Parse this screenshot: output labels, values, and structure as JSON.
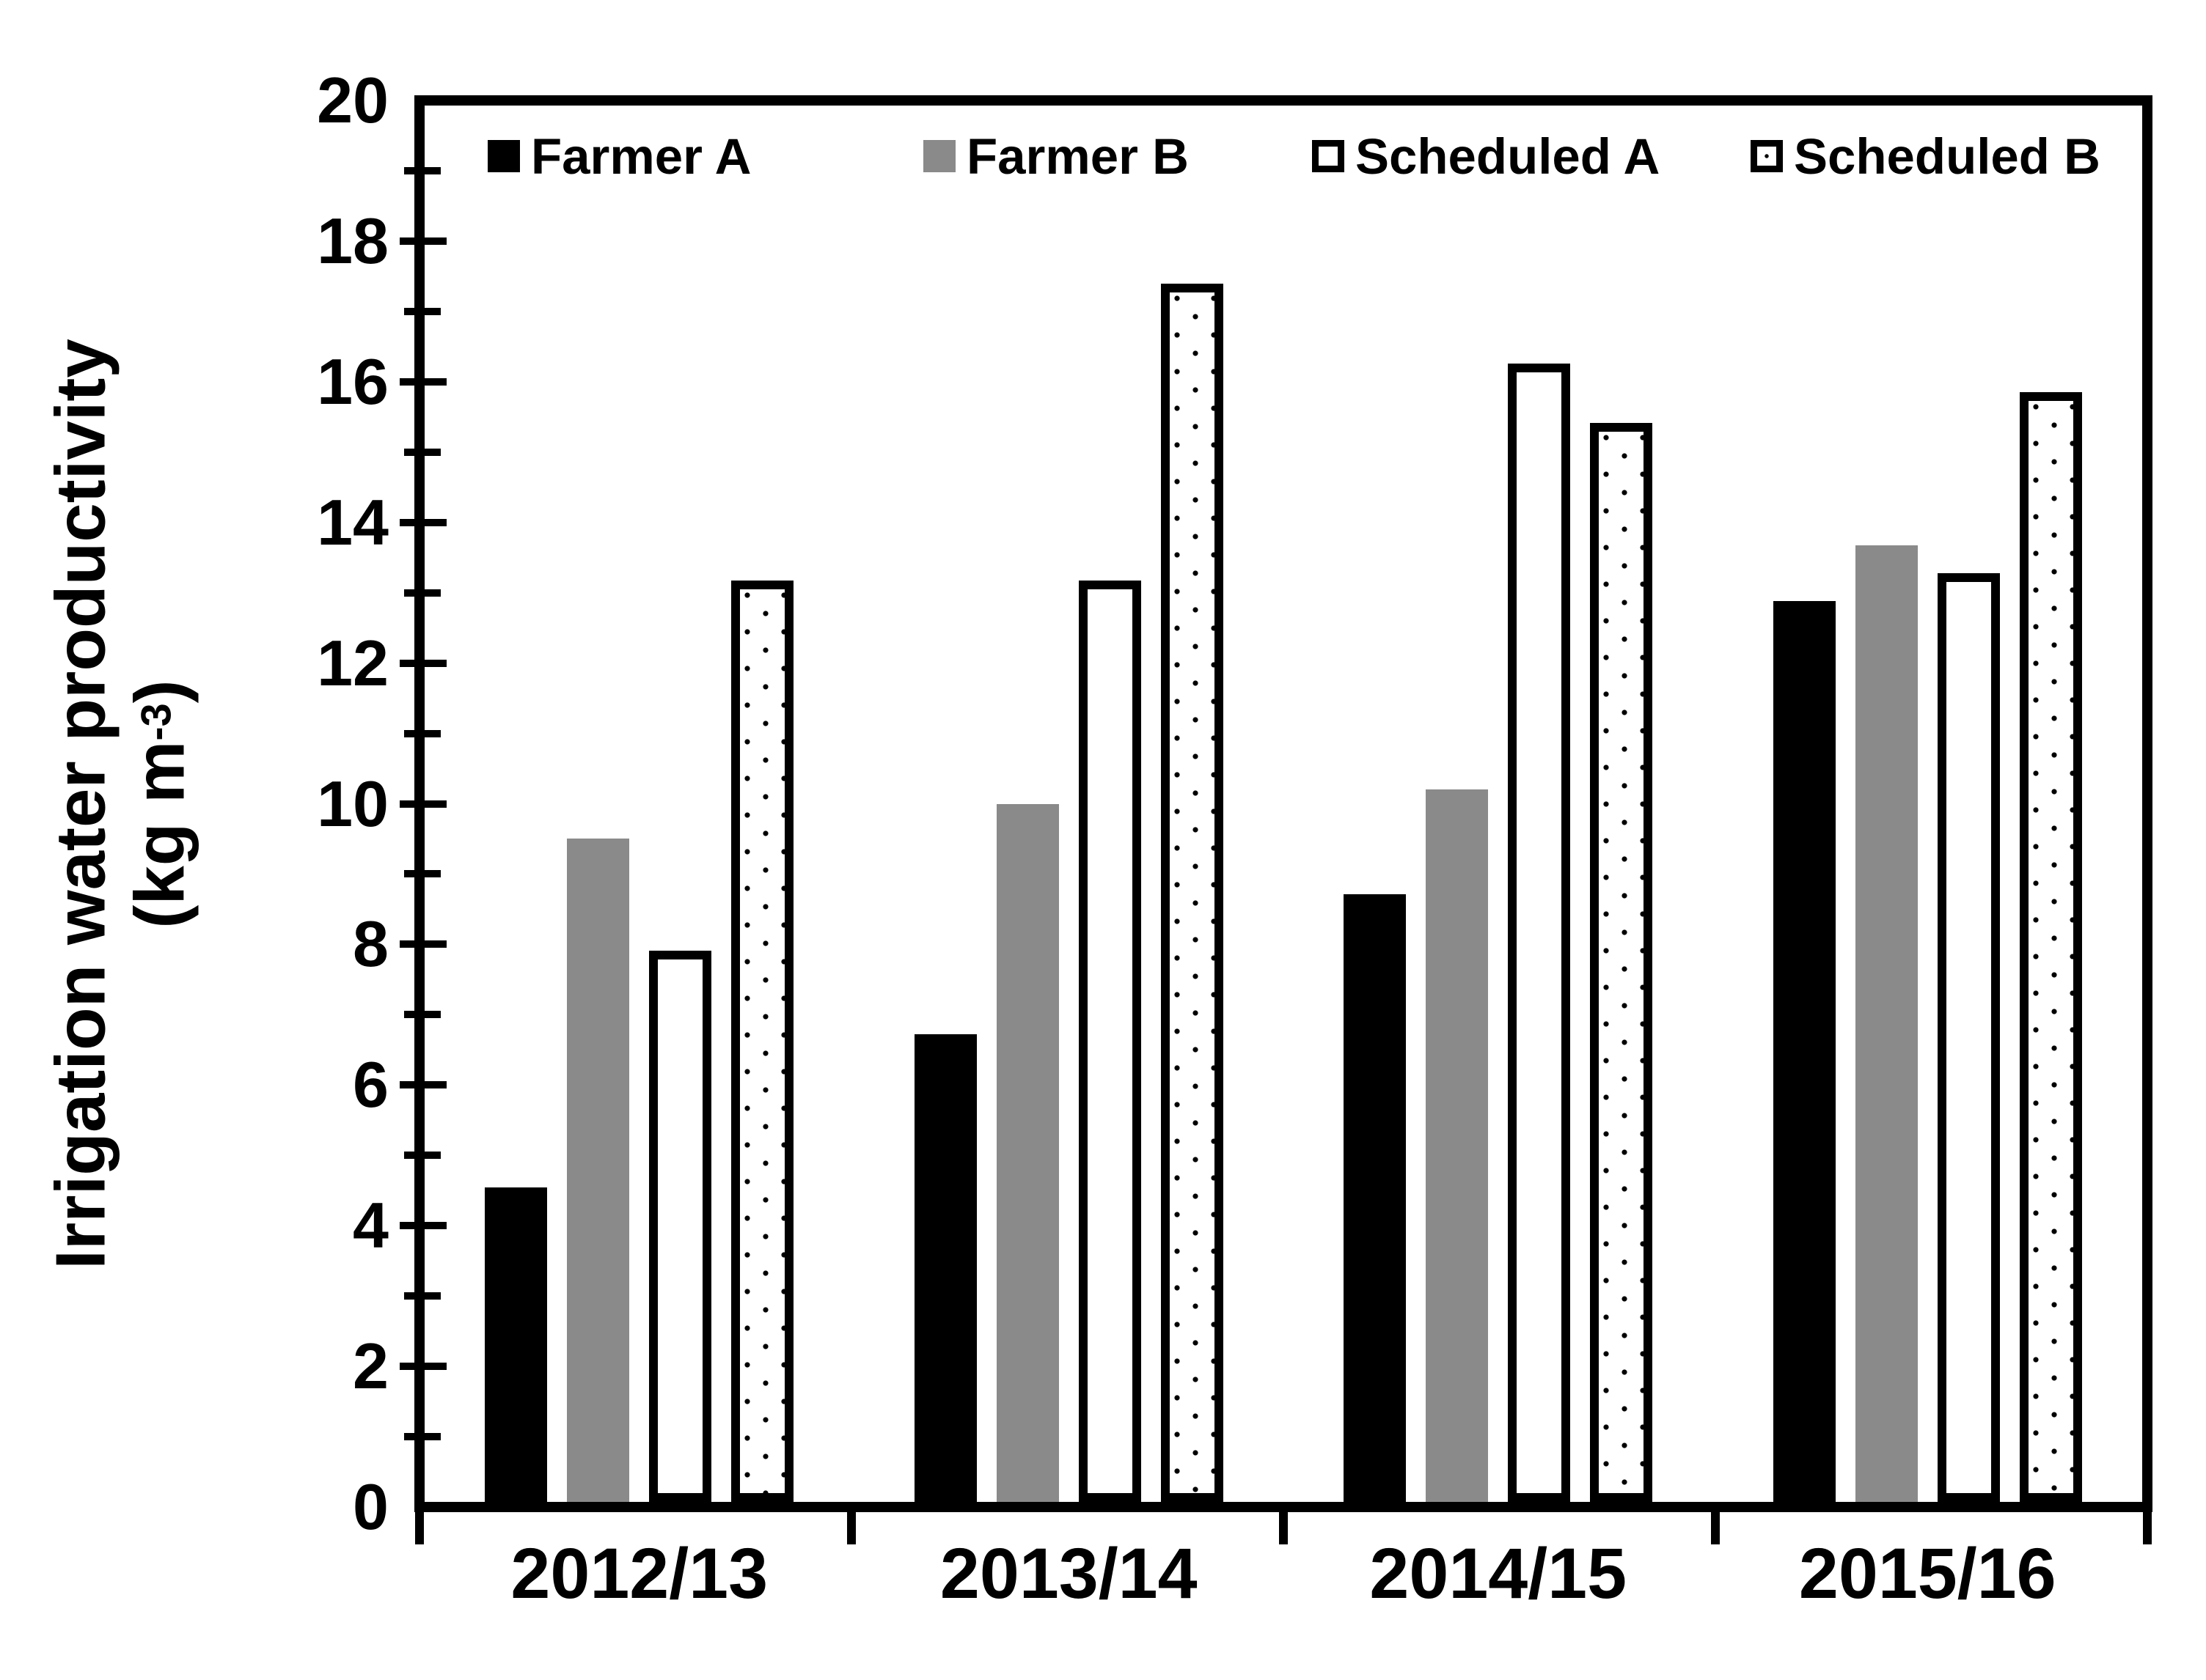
{
  "figure": {
    "background": "#ffffff",
    "axis_color": "#000000"
  },
  "chart_data": {
    "type": "bar",
    "title": "",
    "xlabel": "",
    "ylabel_line1": "Irrigation water productivity",
    "ylabel_unit_pre": "(kg m",
    "ylabel_unit_sup": "-3",
    "ylabel_unit_post": ")",
    "categories": [
      "2012/13",
      "2013/14",
      "2014/15",
      "2015/16"
    ],
    "series": [
      {
        "name": "Farmer A",
        "style": "solid-black",
        "color": "#000000",
        "values": [
          4.5,
          6.7,
          8.7,
          12.9
        ]
      },
      {
        "name": "Farmer B",
        "style": "solid-gray",
        "color": "#8a8a8a",
        "values": [
          9.5,
          10.0,
          10.2,
          13.7
        ]
      },
      {
        "name": "Scheduled A",
        "style": "white-outlined",
        "color": "#ffffff",
        "values": [
          7.9,
          13.2,
          16.3,
          13.3
        ]
      },
      {
        "name": "Scheduled B",
        "style": "dotted-outlined",
        "color": "#ffffff",
        "values": [
          13.2,
          17.45,
          15.45,
          15.9
        ]
      }
    ],
    "ylim": [
      0,
      20
    ],
    "y_major_step": 2,
    "y_minor_step": 1,
    "y_tick_labels": [
      "20",
      "18",
      "16",
      "14",
      "12",
      "10",
      "8",
      "6",
      "4",
      "2",
      "0"
    ],
    "grid": false,
    "legend_position": "top-inside"
  }
}
